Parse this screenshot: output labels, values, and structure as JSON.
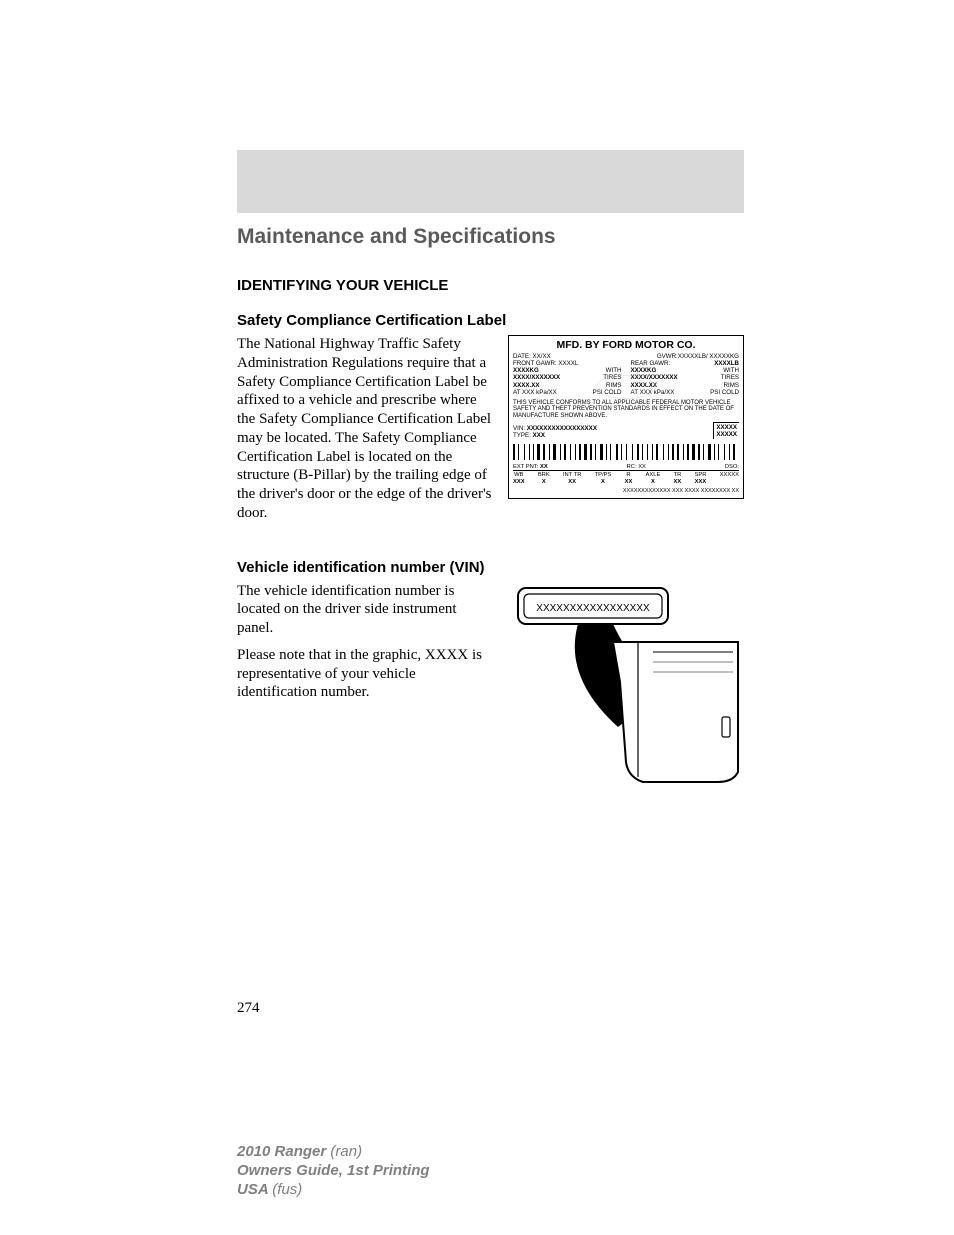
{
  "chapter": "Maintenance and Specifications",
  "section1": {
    "title": "IDENTIFYING YOUR VEHICLE",
    "sub": "Safety Compliance Certification Label",
    "body": "The National Highway Traffic Safety Administration Regulations require that a Safety Compliance Certification Label be affixed to a vehicle and prescribe where the Safety Compliance Certification Label may be located. The Safety Compliance Certification Label is located on the structure (B-Pillar) by the trailing edge of the driver's door or the edge of the driver's door."
  },
  "label": {
    "title": "MFD. BY FORD MOTOR CO.",
    "date": "DATE: XX/XX",
    "gvwr": "GVWR:XXXXXLB/ XXXXXKG",
    "front_gawr": "FRONT GAWR: XXXXL",
    "rear_gawr": "REAR GAWR:",
    "rear_gawr_val": "XXXXLB",
    "front_kg": "XXXXKG",
    "rear_kg": "XXXXKG",
    "with": "WITH",
    "tires_l": "XXXX/XXXXXXX",
    "tires_r": "XXXX/XXXXXXX",
    "tires": "TIRES",
    "rims_l": "XXXX.XX",
    "rims_r": "XXXX.XX",
    "rims": "RIMS",
    "psi_l": "AT  XXX  kPa/XX",
    "psi_r": "AT  XXX  kPa/XX",
    "psi_cold": "PSI COLD",
    "compliance": "THIS VEHICLE CONFORMS TO ALL APPLICABLE FEDERAL MOTOR VEHICLE SAFETY AND THEFT PREVENTION STANDARDS IN EFFECT ON THE DATE OF MANUFACTURE SHOWN ABOVE.",
    "vin_lbl": "VIN:",
    "vin_val": "XXXXXXXXXXXXXXXXX",
    "type_lbl": "TYPE:",
    "type_val": "XXX",
    "xxxxx": "XXXXX",
    "ext_pnt": "EXT PNT:",
    "xx": "XX",
    "rc": "RC: XX",
    "dso": "DSO:",
    "wb": "WB",
    "brk": "BRK",
    "inttr": "INT TR",
    "tpps": "TP/PS",
    "rr": "R",
    "axle": "AXLE",
    "tr": "TR",
    "spr": "SPR",
    "xxx": "XXX",
    "x": "X",
    "tiny": "XXXXXXXXXXXXX XXX    XXXX XXXXXXXX XX"
  },
  "section2": {
    "title": "Vehicle identification number (VIN)",
    "p1": "The vehicle identification number is located on the driver side instrument panel.",
    "p2": "Please note that in the graphic, XXXX is representative of your vehicle identification number.",
    "plate": "XXXXXXXXXXXXXXXXX"
  },
  "page_num": "274",
  "footer": {
    "l1a": "2010 Ranger ",
    "l1b": "(ran)",
    "l2": "Owners Guide, 1st Printing",
    "l3a": "USA ",
    "l3b": "(fus)"
  },
  "barcode_widths": [
    2,
    1,
    1,
    3,
    1,
    2,
    1,
    2,
    1,
    1,
    3,
    1,
    2,
    2,
    1,
    1,
    3,
    2,
    1,
    1,
    2,
    3,
    1,
    2,
    1,
    1,
    2,
    1,
    3,
    1,
    2,
    1,
    1,
    2,
    3,
    1,
    2,
    1,
    1,
    3,
    2,
    1,
    1,
    2,
    1,
    3,
    1,
    2,
    2,
    1,
    1,
    3,
    1,
    2,
    1,
    1,
    2,
    3,
    1,
    2,
    1,
    1,
    2,
    1,
    3,
    2,
    1,
    1,
    2,
    1,
    3,
    1,
    2,
    1,
    1,
    2,
    3,
    1,
    1,
    2,
    1,
    3,
    1,
    2,
    1,
    1,
    2,
    3
  ]
}
